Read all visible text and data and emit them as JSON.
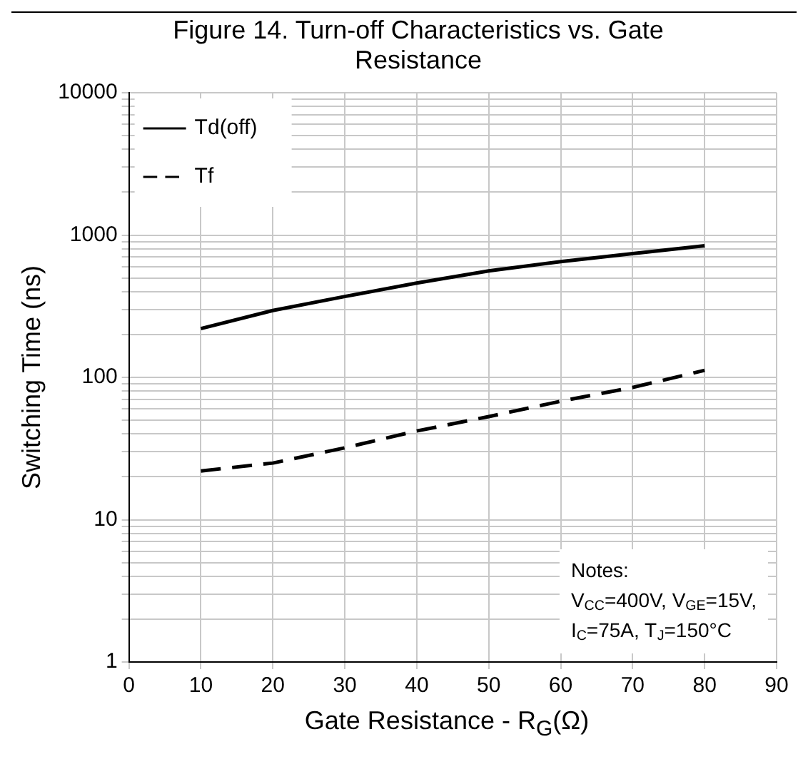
{
  "chart_data": {
    "type": "line",
    "title": "Figure 14. Turn-off Characteristics vs. Gate Resistance",
    "xlabel": "Gate Resistance - R$_{G}$(Ω)",
    "ylabel": "Switching Time (ns)",
    "x": [
      10,
      20,
      30,
      40,
      50,
      60,
      70,
      80
    ],
    "series": [
      {
        "name": "Td(off)",
        "color": "#000000",
        "line_style": "solid",
        "values": [
          220,
          295,
          370,
          460,
          560,
          650,
          740,
          840
        ]
      },
      {
        "name": "Tf",
        "color": "#000000",
        "line_style": "dashed",
        "values": [
          22,
          25,
          32,
          42,
          53,
          68,
          85,
          112
        ]
      }
    ],
    "xlim": [
      0,
      90
    ],
    "xticks": [
      0,
      10,
      20,
      30,
      40,
      50,
      60,
      70,
      80,
      90
    ],
    "log": "y",
    "ylim": [
      1,
      10000
    ],
    "yticks": [
      1,
      {
        "value": 2,
        "label": null
      },
      {
        "value": 3,
        "label": null
      },
      {
        "value": 4,
        "label": null
      },
      {
        "value": 5,
        "label": null
      },
      {
        "value": 6,
        "label": null
      },
      {
        "value": 7,
        "label": null
      },
      {
        "value": 8,
        "label": null
      },
      {
        "value": 9,
        "label": null
      },
      10,
      {
        "value": 20,
        "label": null
      },
      {
        "value": 30,
        "label": null
      },
      {
        "value": 40,
        "label": null
      },
      {
        "value": 50,
        "label": null
      },
      {
        "value": 60,
        "label": null
      },
      {
        "value": 70,
        "label": null
      },
      {
        "value": 80,
        "label": null
      },
      {
        "value": 90,
        "label": null
      },
      100,
      {
        "value": 200,
        "label": null
      },
      {
        "value": 300,
        "label": null
      },
      {
        "value": 400,
        "label": null
      },
      {
        "value": 500,
        "label": null
      },
      {
        "value": 600,
        "label": null
      },
      {
        "value": 700,
        "label": null
      },
      {
        "value": 800,
        "label": null
      },
      {
        "value": 900,
        "label": null
      },
      1000,
      {
        "value": 2000,
        "label": null
      },
      {
        "value": 3000,
        "label": null
      },
      {
        "value": 4000,
        "label": null
      },
      {
        "value": 5000,
        "label": null
      },
      {
        "value": 6000,
        "label": null
      },
      {
        "value": 7000,
        "label": null
      },
      {
        "value": 8000,
        "label": null
      },
      {
        "value": 9000,
        "label": null
      },
      10000
    ],
    "grid": true,
    "legend": "top left",
    "marker": "none",
    "annotations": [
      "Notes:",
      "V$_{CC}$=400V, V$_{GE}$=15V,",
      "I$_{C}$=75A, T$_{J}$=150°C"
    ]
  }
}
